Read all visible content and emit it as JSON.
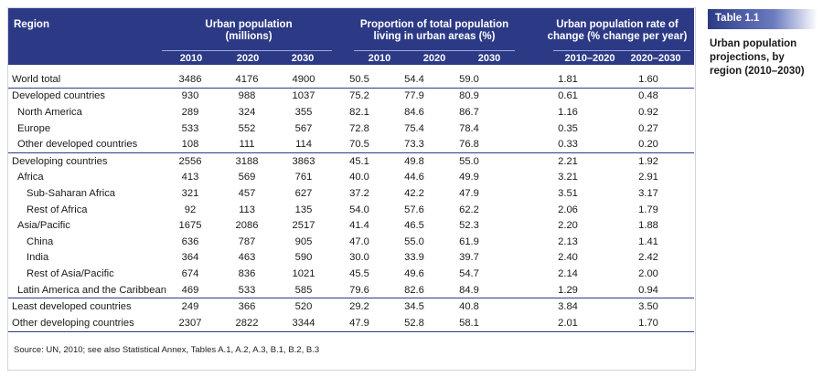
{
  "header": {
    "region": "Region",
    "urban_pop": "Urban population (millions)",
    "proportion": "Proportion of total population living in urban areas (%)",
    "rate": "Urban population rate of change (% change per year)",
    "years_pop": [
      "2010",
      "2020",
      "2030"
    ],
    "years_prop": [
      "2010",
      "2020",
      "2030"
    ],
    "years_rate": [
      "2010–2020",
      "2020–2030"
    ]
  },
  "rows": [
    {
      "region": "World total",
      "indent": 0,
      "sep": false,
      "vals": [
        "3486",
        "4176",
        "4900",
        "50.5",
        "54.4",
        "59.0",
        "1.81",
        "1.60"
      ]
    },
    {
      "region": "Developed countries",
      "indent": 0,
      "sep": true,
      "vals": [
        "930",
        "988",
        "1037",
        "75.2",
        "77.9",
        "80.9",
        "0.61",
        "0.48"
      ]
    },
    {
      "region": "North America",
      "indent": 1,
      "sep": false,
      "vals": [
        "289",
        "324",
        "355",
        "82.1",
        "84.6",
        "86.7",
        "1.16",
        "0.92"
      ]
    },
    {
      "region": "Europe",
      "indent": 1,
      "sep": false,
      "vals": [
        "533",
        "552",
        "567",
        "72.8",
        "75.4",
        "78.4",
        "0.35",
        "0.27"
      ]
    },
    {
      "region": "Other developed countries",
      "indent": 1,
      "sep": false,
      "vals": [
        "108",
        "111",
        "114",
        "70.5",
        "73.3",
        "76.8",
        "0.33",
        "0.20"
      ]
    },
    {
      "region": "Developing countries",
      "indent": 0,
      "sep": true,
      "vals": [
        "2556",
        "3188",
        "3863",
        "45.1",
        "49.8",
        "55.0",
        "2.21",
        "1.92"
      ]
    },
    {
      "region": "Africa",
      "indent": 1,
      "sep": false,
      "vals": [
        "413",
        "569",
        "761",
        "40.0",
        "44.6",
        "49.9",
        "3.21",
        "2.91"
      ]
    },
    {
      "region": "Sub-Saharan Africa",
      "indent": 2,
      "sep": false,
      "vals": [
        "321",
        "457",
        "627",
        "37.2",
        "42.2",
        "47.9",
        "3.51",
        "3.17"
      ]
    },
    {
      "region": "Rest of Africa",
      "indent": 2,
      "sep": false,
      "vals": [
        "92",
        "113",
        "135",
        "54.0",
        "57.6",
        "62.2",
        "2.06",
        "1.79"
      ]
    },
    {
      "region": "Asia/Pacific",
      "indent": 1,
      "sep": false,
      "vals": [
        "1675",
        "2086",
        "2517",
        "41.4",
        "46.5",
        "52.3",
        "2.20",
        "1.88"
      ]
    },
    {
      "region": "China",
      "indent": 2,
      "sep": false,
      "vals": [
        "636",
        "787",
        "905",
        "47.0",
        "55.0",
        "61.9",
        "2.13",
        "1.41"
      ]
    },
    {
      "region": "India",
      "indent": 2,
      "sep": false,
      "vals": [
        "364",
        "463",
        "590",
        "30.0",
        "33.9",
        "39.7",
        "2.40",
        "2.42"
      ]
    },
    {
      "region": "Rest of Asia/Pacific",
      "indent": 2,
      "sep": false,
      "vals": [
        "674",
        "836",
        "1021",
        "45.5",
        "49.6",
        "54.7",
        "2.14",
        "2.00"
      ]
    },
    {
      "region": "Latin America and the Caribbean",
      "indent": 1,
      "sep": false,
      "vals": [
        "469",
        "533",
        "585",
        "79.6",
        "82.6",
        "84.9",
        "1.29",
        "0.94"
      ]
    },
    {
      "region": "Least developed countries",
      "indent": 0,
      "sep": true,
      "vals": [
        "249",
        "366",
        "520",
        "29.2",
        "34.5",
        "40.8",
        "3.84",
        "3.50"
      ]
    },
    {
      "region": "Other developing countries",
      "indent": 0,
      "sep": false,
      "vals": [
        "2307",
        "2822",
        "3344",
        "47.9",
        "52.8",
        "58.1",
        "2.01",
        "1.70"
      ]
    }
  ],
  "source": {
    "label": "Source:",
    "text": " UN, 2010; see also Statistical Annex, Tables A.1, A.2, A.3, B.1, B.2, B.3"
  },
  "side": {
    "tag": "Table 1.1",
    "caption": "Urban population projections, by region (2010–2030)"
  },
  "colors": {
    "accent": "#2c3a86",
    "tag_gradient_end": "#6b7bc0"
  }
}
